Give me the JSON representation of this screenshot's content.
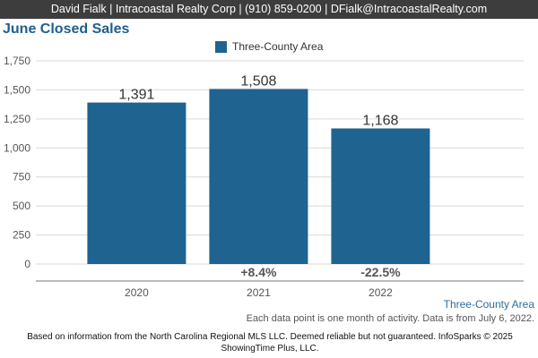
{
  "header": {
    "banner": "David Fialk | Intracoastal Realty Corp | (910) 859-0200 | DFialk@IntracoastalRealty.com"
  },
  "footer": {
    "area_label": "Three-County Area",
    "note": "Each data point is one month of activity. Data is from July 6, 2022.",
    "disclaimer": "Based on information from the North Carolina Regional MLS LLC. Deemed reliable but not guaranteed. InfoSparks © 2025 ShowingTime Plus, LLC."
  },
  "colors": {
    "bar": "#1f6391",
    "title": "#1f5f8b",
    "grid": "#d9d9d9"
  },
  "chart_data": {
    "type": "bar",
    "title": "June Closed Sales",
    "categories": [
      "2020",
      "2021",
      "2022"
    ],
    "series": [
      {
        "name": "Three-County Area",
        "values": [
          1391,
          1508,
          1168
        ]
      }
    ],
    "value_labels": [
      "1,391",
      "1,508",
      "1,168"
    ],
    "change_labels": [
      "",
      "+8.4%",
      "-22.5%"
    ],
    "yticks": [
      "0",
      "250",
      "500",
      "750",
      "1,000",
      "1,250",
      "1,500",
      "1,750"
    ],
    "ytick_values": [
      0,
      250,
      500,
      750,
      1000,
      1250,
      1500,
      1750
    ],
    "ylim": [
      0,
      1750
    ],
    "grid": true,
    "legend": "top-center"
  }
}
